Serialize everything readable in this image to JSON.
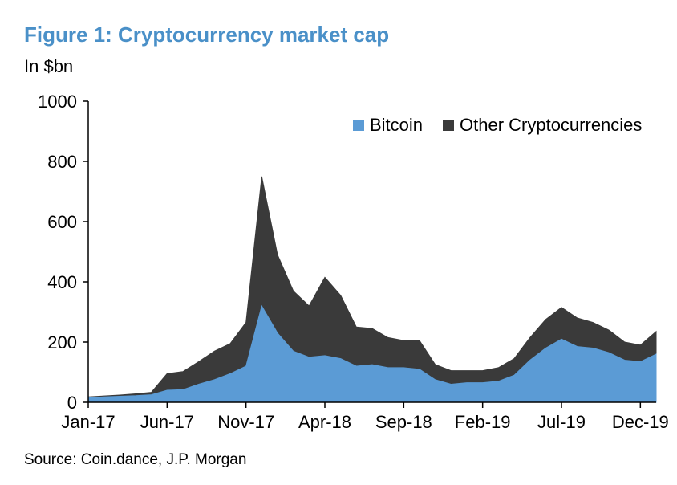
{
  "header": {
    "title": "Figure 1: Cryptocurrency market cap",
    "unit": "In $bn"
  },
  "footer": {
    "source": "Source: Coin.dance, J.P. Morgan"
  },
  "colors": {
    "title": "#4a90c8",
    "bitcoin": "#5b9bd5",
    "other": "#3a3a3a",
    "axis": "#000000"
  },
  "chart_data": {
    "type": "area",
    "stacked": true,
    "ylim": [
      0,
      1000
    ],
    "yticks": [
      0,
      200,
      400,
      600,
      800,
      1000
    ],
    "xticks": [
      "Jan-17",
      "Jun-17",
      "Nov-17",
      "Apr-18",
      "Sep-18",
      "Feb-19",
      "Jul-19",
      "Dec-19"
    ],
    "x": [
      "Jan-17",
      "Feb-17",
      "Mar-17",
      "Apr-17",
      "May-17",
      "Jun-17",
      "Jul-17",
      "Aug-17",
      "Sep-17",
      "Oct-17",
      "Nov-17",
      "Dec-17",
      "Jan-18",
      "Feb-18",
      "Mar-18",
      "Apr-18",
      "May-18",
      "Jun-18",
      "Jul-18",
      "Aug-18",
      "Sep-18",
      "Oct-18",
      "Nov-18",
      "Dec-18",
      "Jan-19",
      "Feb-19",
      "Mar-19",
      "Apr-19",
      "May-19",
      "Jun-19",
      "Jul-19",
      "Aug-19",
      "Sep-19",
      "Oct-19",
      "Nov-19",
      "Dec-19",
      "Jan-20"
    ],
    "legend_position": "top-right",
    "series": [
      {
        "name": "Bitcoin",
        "color": "#5b9bd5",
        "values": [
          16,
          18,
          20,
          22,
          25,
          40,
          42,
          60,
          75,
          95,
          120,
          320,
          230,
          170,
          150,
          155,
          145,
          120,
          125,
          115,
          115,
          110,
          75,
          60,
          65,
          65,
          70,
          90,
          140,
          180,
          210,
          185,
          180,
          165,
          140,
          135,
          160
        ]
      },
      {
        "name": "Other Cryptocurrencies",
        "color": "#3a3a3a",
        "values": [
          2,
          3,
          4,
          6,
          8,
          55,
          60,
          75,
          95,
          100,
          145,
          430,
          260,
          200,
          170,
          260,
          210,
          130,
          120,
          100,
          90,
          95,
          50,
          45,
          40,
          40,
          45,
          55,
          75,
          95,
          105,
          95,
          85,
          75,
          60,
          55,
          75
        ]
      }
    ]
  }
}
